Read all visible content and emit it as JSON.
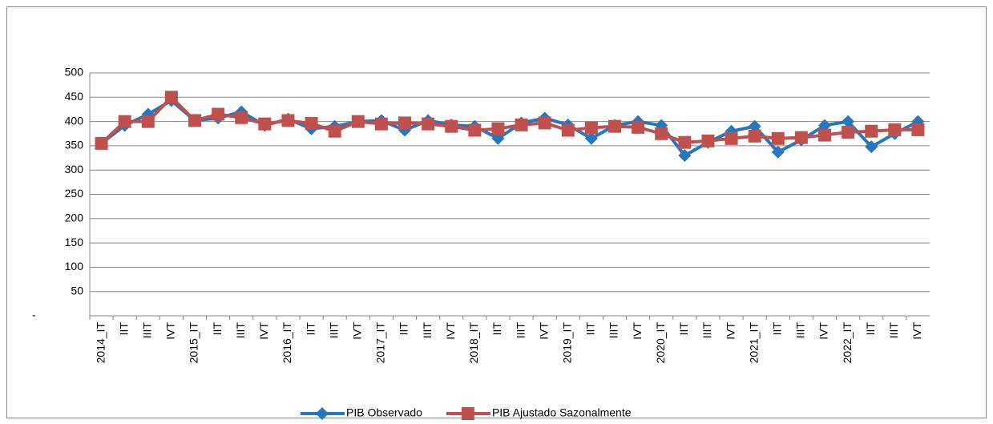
{
  "chart_data": {
    "type": "line",
    "categories": [
      "2014_IT",
      "IIT",
      "IIIT",
      "IVT",
      "2015_IT",
      "IIT",
      "IIIT",
      "IVT",
      "2016_IT",
      "IIT",
      "IIIT",
      "IVT",
      "2017_IT",
      "IIT",
      "IIIT",
      "IVT",
      "2018_IT",
      "IIT",
      "IIIT",
      "IVT",
      "2019_IT",
      "IIT",
      "IIIT",
      "IVT",
      "2020_IT",
      "IIT",
      "IIIT",
      "IVT",
      "2021_IT",
      "IIT",
      "IIIT",
      "IVT",
      "2022_IT",
      "IIT",
      "IIIT",
      "IVT"
    ],
    "series": [
      {
        "name": "PIB Observado",
        "color": "#2677c0",
        "marker": "diamond",
        "values": [
          355,
          392,
          415,
          443,
          402,
          407,
          420,
          392,
          405,
          385,
          390,
          400,
          402,
          382,
          402,
          393,
          390,
          365,
          397,
          407,
          393,
          365,
          392,
          400,
          392,
          330,
          357,
          380,
          390,
          337,
          362,
          392,
          400,
          348,
          375,
          400
        ]
      },
      {
        "name": "PIB Ajustado Sazonalmente",
        "color": "#c0504d",
        "marker": "square",
        "values": [
          355,
          400,
          400,
          450,
          402,
          415,
          408,
          395,
          402,
          396,
          380,
          400,
          395,
          397,
          395,
          390,
          382,
          385,
          393,
          397,
          382,
          387,
          390,
          388,
          375,
          357,
          360,
          365,
          370,
          365,
          367,
          372,
          378,
          380,
          383,
          383
        ]
      }
    ],
    "ylim": [
      0,
      500
    ],
    "yticks": [
      {
        "value": 0,
        "label": "-"
      },
      50,
      100,
      150,
      200,
      250,
      300,
      350,
      400,
      450,
      500
    ],
    "grid": true,
    "legend": "bottom"
  }
}
